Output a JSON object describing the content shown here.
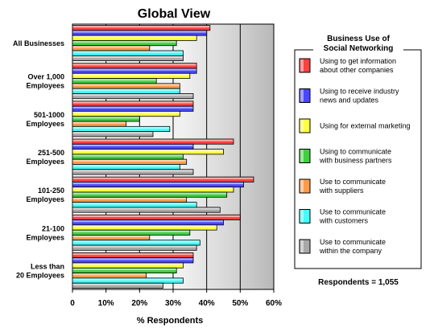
{
  "chart_data": {
    "type": "bar",
    "orientation": "horizontal",
    "title": "Global View",
    "xlabel": "% Respondents",
    "ylabel": "",
    "xlim": [
      0,
      60
    ],
    "x_ticks": [
      "0",
      "10%",
      "20%",
      "30%",
      "40%",
      "50%",
      "60%"
    ],
    "grid": "vertical",
    "categories": [
      [
        "All Businesses"
      ],
      [
        "Over 1,000",
        "Employees"
      ],
      [
        "501-1000",
        "Employees"
      ],
      [
        "251-500",
        "Employees"
      ],
      [
        "101-250",
        "Employees"
      ],
      [
        "21-100",
        "Employees"
      ],
      [
        "Less than",
        "20 Employees"
      ]
    ],
    "legend": {
      "title": [
        "Business Use of",
        "Social Networking"
      ],
      "placement": "right"
    },
    "series": [
      {
        "name": [
          "Using to get information",
          "about other companies"
        ],
        "color": "#ff4040",
        "values": [
          41,
          37,
          36,
          48,
          54,
          50,
          36
        ]
      },
      {
        "name": [
          "Using to receive industry",
          "news and updates"
        ],
        "color": "#4848ff",
        "values": [
          40,
          37,
          36,
          36,
          51,
          45,
          36
        ]
      },
      {
        "name": [
          "Using for external marketing"
        ],
        "color": "#ffff40",
        "values": [
          37,
          35,
          32,
          45,
          48,
          43,
          33
        ]
      },
      {
        "name": [
          "Using to communicate",
          "with business partners"
        ],
        "color": "#40d040",
        "values": [
          31,
          25,
          20,
          33,
          46,
          35,
          31
        ]
      },
      {
        "name": [
          "Use to communicate",
          "with suppliers"
        ],
        "color": "#ff9a4a",
        "values": [
          23,
          32,
          16,
          34,
          34,
          23,
          22
        ]
      },
      {
        "name": [
          "Use to communicate",
          "with customers"
        ],
        "color": "#40ffff",
        "values": [
          33,
          32,
          29,
          32,
          37,
          38,
          33
        ]
      },
      {
        "name": [
          "Use to communicate",
          "within the company"
        ],
        "color": "#a8a8a8",
        "values": [
          33,
          36,
          24,
          36,
          44,
          37,
          27
        ]
      }
    ],
    "note": "Respondents = 1,055"
  }
}
